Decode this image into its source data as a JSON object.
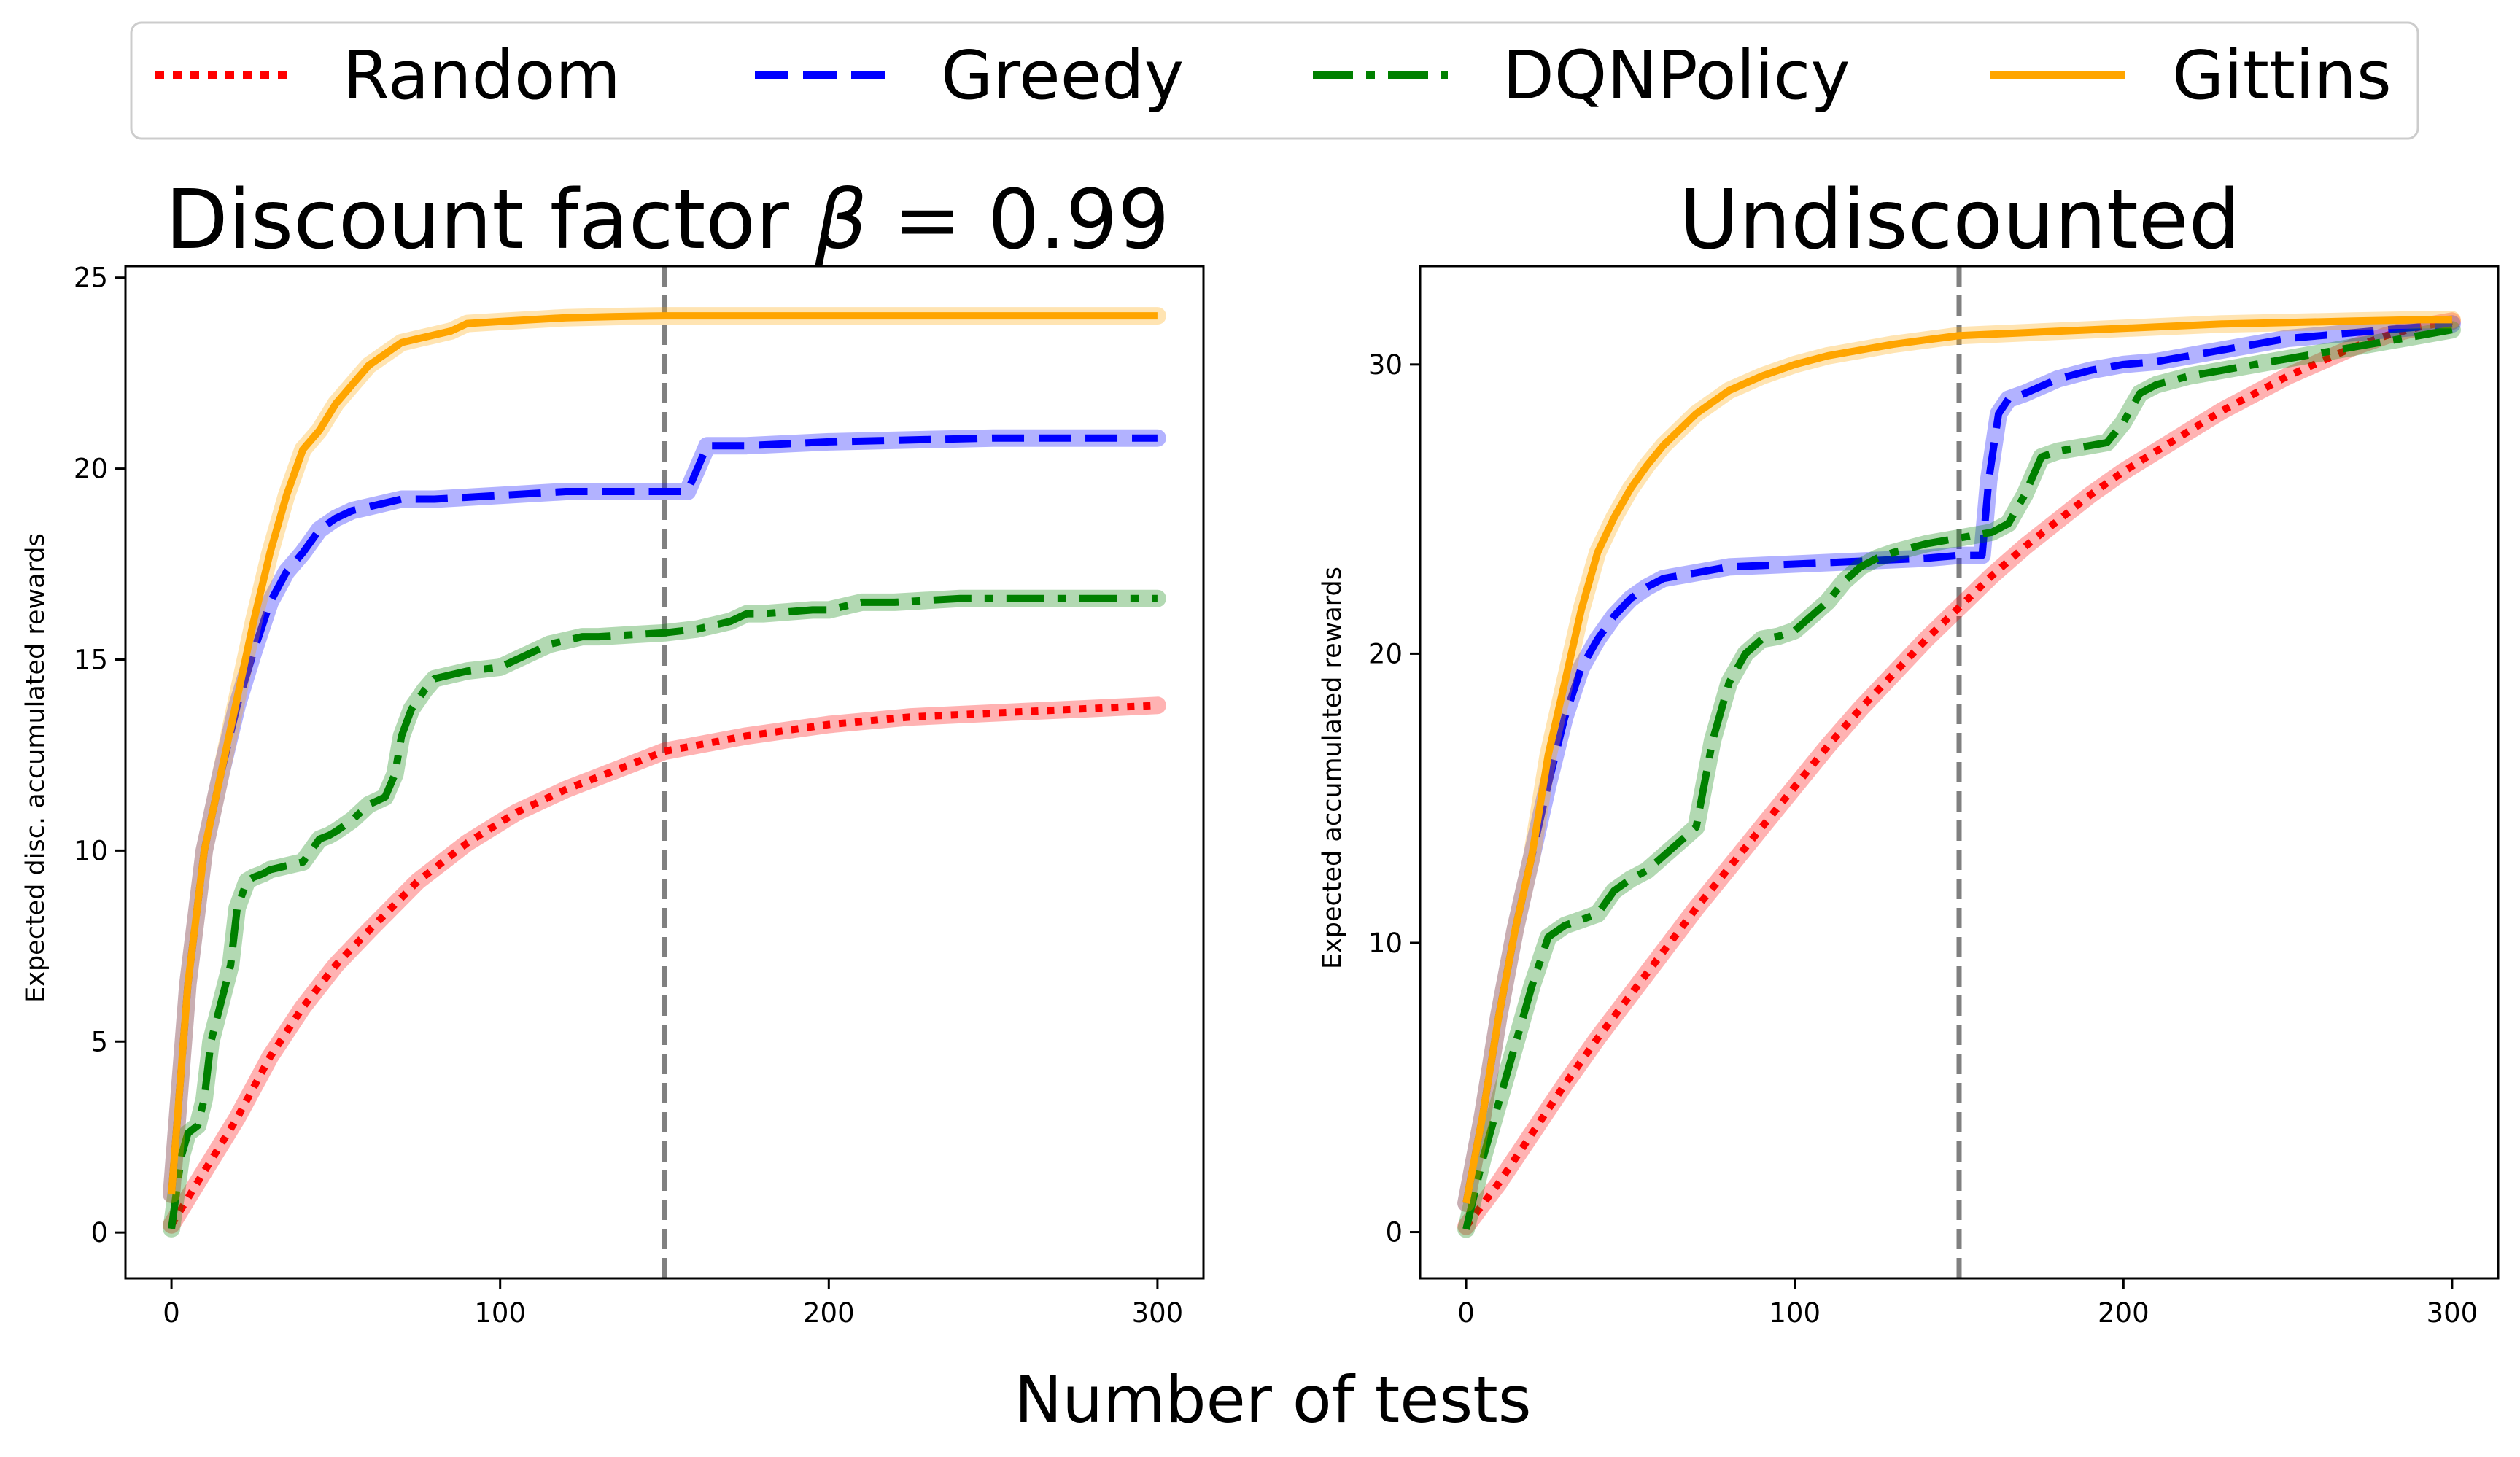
{
  "figure": {
    "supxlabel": "Number of tests"
  },
  "legend": {
    "placement": "top",
    "items": [
      {
        "label": "Random",
        "color": "#ff0000",
        "style": "dotted"
      },
      {
        "label": "Greedy",
        "color": "#0000ff",
        "style": "dashed"
      },
      {
        "label": "DQNPolicy",
        "color": "#008000",
        "style": "dashdot"
      },
      {
        "label": "Gittins",
        "color": "#ffa500",
        "style": "solid"
      }
    ]
  },
  "chart_data": [
    {
      "type": "line",
      "title_prefix": "Discount factor ",
      "title_symbol": "β",
      "title_suffix": " =  0.99",
      "xlabel": "",
      "ylabel": "Expected disc. accumulated rewards",
      "xlim": [
        -14,
        314
      ],
      "ylim": [
        -1.2,
        25.3
      ],
      "xticks": [
        0,
        100,
        200,
        300
      ],
      "yticks": [
        0,
        5,
        10,
        15,
        20,
        25
      ],
      "grid": false,
      "vline_x": 150,
      "series": [
        {
          "name": "Random",
          "color": "#ff0000",
          "style": "dotted",
          "x": [
            0,
            10,
            20,
            30,
            40,
            50,
            60,
            75,
            90,
            105,
            120,
            135,
            150,
            175,
            200,
            225,
            250,
            275,
            300
          ],
          "y": [
            0.2,
            1.6,
            3.0,
            4.6,
            5.9,
            7.0,
            7.9,
            9.2,
            10.2,
            11.0,
            11.6,
            12.1,
            12.6,
            13.0,
            13.3,
            13.5,
            13.6,
            13.7,
            13.8
          ]
        },
        {
          "name": "Greedy",
          "color": "#0000ff",
          "style": "dashed",
          "x": [
            0,
            5,
            10,
            15,
            20,
            25,
            30,
            35,
            40,
            45,
            50,
            55,
            60,
            70,
            80,
            100,
            120,
            140,
            150,
            157,
            160,
            163,
            175,
            200,
            250,
            300
          ],
          "y": [
            1.0,
            6.5,
            10.0,
            12.0,
            13.8,
            15.2,
            16.5,
            17.3,
            17.8,
            18.4,
            18.7,
            18.9,
            19.0,
            19.2,
            19.2,
            19.3,
            19.4,
            19.4,
            19.4,
            19.4,
            20.0,
            20.6,
            20.6,
            20.7,
            20.8,
            20.8
          ]
        },
        {
          "name": "DQNPolicy",
          "color": "#008000",
          "style": "dashdot",
          "x": [
            0,
            3,
            5,
            8,
            10,
            12,
            15,
            18,
            20,
            23,
            25,
            28,
            30,
            35,
            40,
            45,
            48,
            50,
            55,
            60,
            65,
            68,
            70,
            73,
            77,
            80,
            85,
            90,
            100,
            105,
            110,
            115,
            120,
            125,
            130,
            140,
            150,
            160,
            170,
            175,
            180,
            195,
            200,
            210,
            220,
            240,
            260,
            280,
            300
          ],
          "y": [
            0.1,
            2.0,
            2.6,
            2.8,
            3.5,
            5.0,
            6.0,
            7.0,
            8.5,
            9.2,
            9.3,
            9.4,
            9.5,
            9.6,
            9.7,
            10.3,
            10.4,
            10.5,
            10.8,
            11.2,
            11.4,
            12.0,
            13.0,
            13.7,
            14.2,
            14.5,
            14.6,
            14.7,
            14.8,
            15.0,
            15.2,
            15.4,
            15.5,
            15.6,
            15.6,
            15.65,
            15.7,
            15.8,
            16.0,
            16.2,
            16.2,
            16.3,
            16.3,
            16.5,
            16.5,
            16.6,
            16.6,
            16.6,
            16.6
          ]
        },
        {
          "name": "Gittins",
          "color": "#ffa500",
          "style": "solid",
          "x": [
            0,
            5,
            10,
            15,
            20,
            25,
            30,
            35,
            40,
            45,
            50,
            55,
            60,
            65,
            70,
            75,
            80,
            85,
            90,
            100,
            110,
            120,
            135,
            150,
            175,
            200,
            250,
            300
          ],
          "y": [
            1.0,
            6.5,
            10.0,
            12.0,
            14.0,
            16.0,
            17.8,
            19.3,
            20.5,
            21.0,
            21.7,
            22.2,
            22.7,
            23.0,
            23.3,
            23.4,
            23.5,
            23.6,
            23.8,
            23.85,
            23.9,
            23.95,
            23.98,
            24.0,
            24.0,
            24.0,
            24.0,
            24.0
          ]
        }
      ]
    },
    {
      "type": "line",
      "title": "Undiscounted",
      "xlabel": "",
      "ylabel": "Expected accumulated rewards",
      "xlim": [
        -14,
        314
      ],
      "ylim": [
        -1.6,
        33.4
      ],
      "xticks": [
        0,
        100,
        200,
        300
      ],
      "yticks": [
        0,
        10,
        20,
        30
      ],
      "grid": false,
      "vline_x": 150,
      "series": [
        {
          "name": "Random",
          "color": "#ff0000",
          "style": "dotted",
          "x": [
            0,
            10,
            20,
            30,
            40,
            50,
            60,
            70,
            80,
            90,
            100,
            110,
            120,
            130,
            140,
            150,
            160,
            170,
            180,
            190,
            200,
            210,
            220,
            230,
            240,
            250,
            260,
            270,
            280,
            290,
            300
          ],
          "y": [
            0.2,
            1.7,
            3.4,
            5.1,
            6.7,
            8.2,
            9.7,
            11.2,
            12.6,
            14.0,
            15.4,
            16.8,
            18.1,
            19.3,
            20.5,
            21.6,
            22.7,
            23.7,
            24.6,
            25.5,
            26.3,
            27.0,
            27.7,
            28.4,
            29.0,
            29.6,
            30.1,
            30.6,
            31.0,
            31.3,
            31.5
          ]
        },
        {
          "name": "Greedy",
          "color": "#0000ff",
          "style": "dashed",
          "x": [
            0,
            5,
            10,
            15,
            20,
            25,
            30,
            35,
            40,
            45,
            50,
            55,
            60,
            70,
            80,
            100,
            120,
            140,
            150,
            157,
            159,
            162,
            165,
            170,
            180,
            190,
            200,
            210,
            220,
            230,
            240,
            250,
            260,
            270,
            280,
            290,
            300
          ],
          "y": [
            1.0,
            4.0,
            7.5,
            10.5,
            13.0,
            15.5,
            17.8,
            19.5,
            20.5,
            21.3,
            21.9,
            22.3,
            22.6,
            22.8,
            23.0,
            23.1,
            23.2,
            23.3,
            23.4,
            23.4,
            26.0,
            28.3,
            28.8,
            29.0,
            29.5,
            29.8,
            30.0,
            30.1,
            30.3,
            30.5,
            30.7,
            30.9,
            31.0,
            31.1,
            31.2,
            31.3,
            31.4
          ]
        },
        {
          "name": "DQNPolicy",
          "color": "#008000",
          "style": "dashdot",
          "x": [
            0,
            5,
            10,
            15,
            20,
            25,
            30,
            35,
            40,
            45,
            50,
            55,
            60,
            65,
            70,
            75,
            80,
            85,
            90,
            95,
            100,
            110,
            115,
            120,
            125,
            130,
            140,
            150,
            160,
            165,
            170,
            175,
            180,
            190,
            195,
            200,
            205,
            210,
            220,
            230,
            240,
            250,
            260,
            270,
            280,
            290,
            300
          ],
          "y": [
            0.1,
            2.5,
            4.5,
            6.5,
            8.5,
            10.2,
            10.6,
            10.8,
            11.0,
            11.8,
            12.2,
            12.5,
            13.0,
            13.5,
            14.0,
            17.0,
            19.0,
            20.0,
            20.5,
            20.6,
            20.8,
            21.8,
            22.5,
            23.0,
            23.3,
            23.5,
            23.8,
            24.0,
            24.2,
            24.5,
            25.5,
            26.8,
            27.0,
            27.2,
            27.3,
            28.0,
            29.0,
            29.3,
            29.6,
            29.8,
            30.0,
            30.2,
            30.4,
            30.6,
            30.8,
            31.0,
            31.2
          ]
        },
        {
          "name": "Gittins",
          "color": "#ffa500",
          "style": "solid",
          "x": [
            0,
            5,
            10,
            15,
            20,
            25,
            30,
            35,
            40,
            45,
            50,
            55,
            60,
            70,
            80,
            90,
            100,
            110,
            120,
            130,
            140,
            150,
            170,
            190,
            210,
            230,
            250,
            270,
            290,
            300
          ],
          "y": [
            1.0,
            4.0,
            7.5,
            10.5,
            13.0,
            16.5,
            19.0,
            21.5,
            23.5,
            24.7,
            25.7,
            26.5,
            27.2,
            28.3,
            29.1,
            29.6,
            30.0,
            30.3,
            30.5,
            30.7,
            30.85,
            31.0,
            31.1,
            31.2,
            31.3,
            31.4,
            31.45,
            31.5,
            31.55,
            31.55
          ]
        }
      ]
    }
  ]
}
